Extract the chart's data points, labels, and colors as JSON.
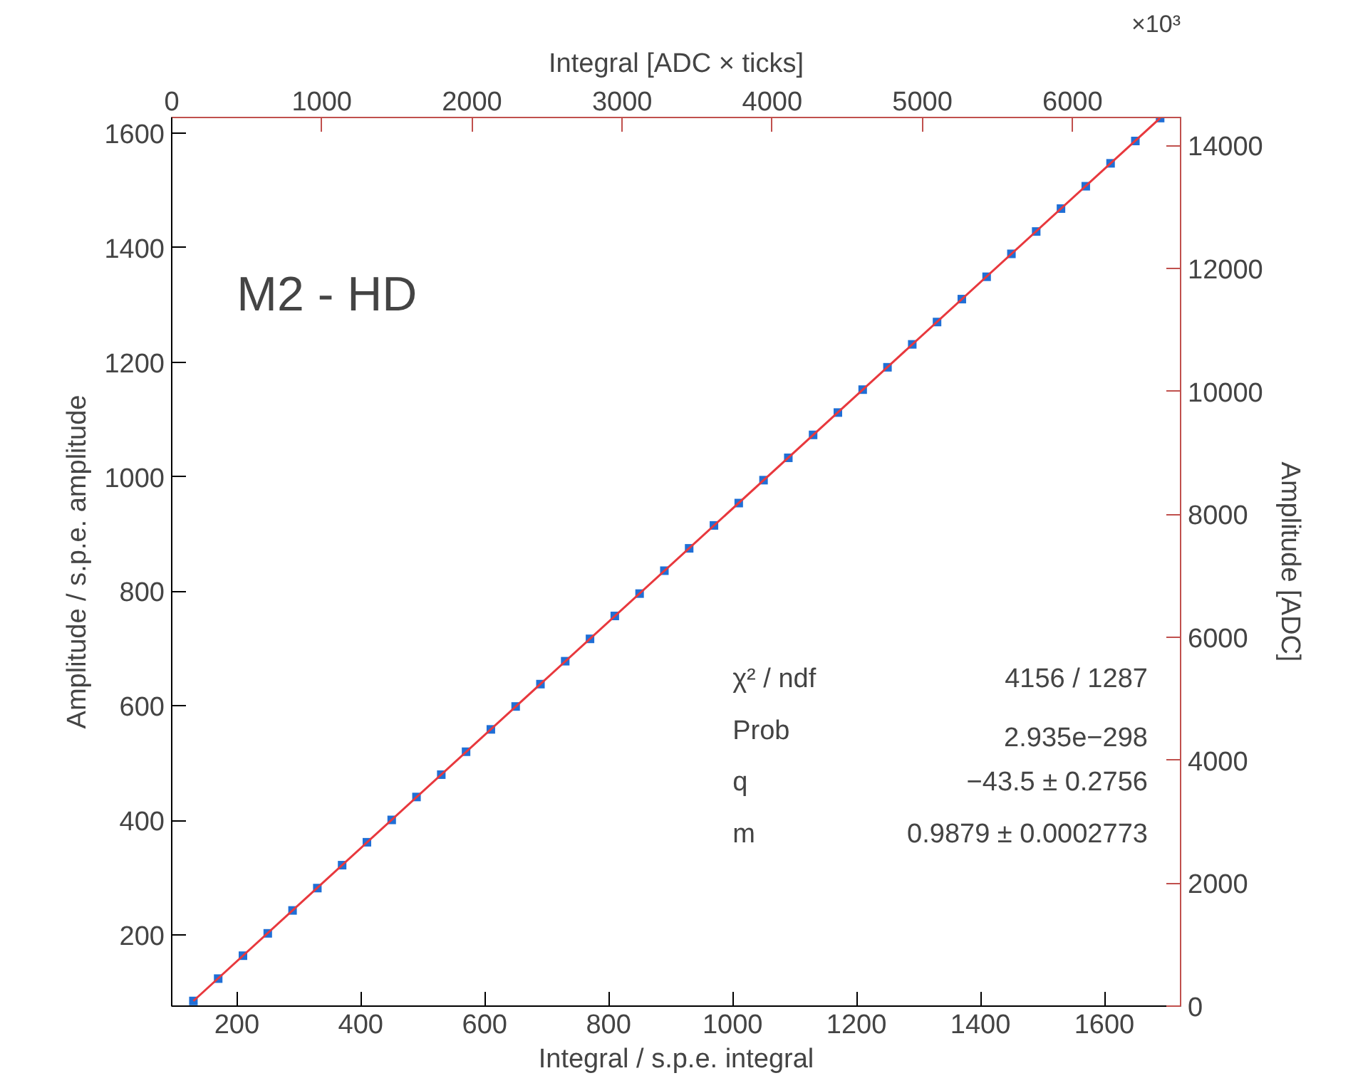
{
  "chart_data": {
    "type": "scatter",
    "xlabel": "Integral / s.p.e. integral",
    "ylabel": "Amplitude / s.p.e. amplitude",
    "x2label": "Integral [ADC × ticks]",
    "y2label": "Amplitude [ADC]",
    "xlim": [
      95,
      1723
    ],
    "ylim": [
      76,
      1627
    ],
    "x2lim": [
      0,
      6720
    ],
    "y2lim": [
      0,
      14453
    ],
    "xticks": [
      200,
      400,
      600,
      800,
      1000,
      1200,
      1400,
      1600
    ],
    "yticks": [
      200,
      400,
      600,
      800,
      1000,
      1200,
      1400,
      1600
    ],
    "x2ticks": [
      0,
      1000,
      2000,
      3000,
      4000,
      5000,
      6000
    ],
    "y2ticks": [
      0,
      2000,
      4000,
      6000,
      8000,
      10000,
      12000,
      14000
    ],
    "grid": false,
    "series": [
      {
        "color": "#1f6fd6",
        "marker": "square",
        "x": [
          130,
          170,
          210,
          250,
          290,
          330,
          370,
          410,
          450,
          490,
          530,
          570,
          610,
          650,
          690,
          730,
          770,
          810,
          850,
          890,
          930,
          970,
          1010,
          1050,
          1090,
          1130,
          1170,
          1210,
          1250,
          1290,
          1330,
          1370,
          1410,
          1450,
          1490,
          1530,
          1570,
          1610,
          1650,
          1690
        ],
        "values": [
          85,
          124,
          164,
          203,
          243,
          282,
          322,
          362,
          401,
          441,
          480,
          520,
          559,
          599,
          638,
          678,
          717,
          757,
          796,
          836,
          875,
          915,
          954,
          994,
          1033,
          1073,
          1112,
          1152,
          1191,
          1231,
          1270,
          1310,
          1349,
          1389,
          1428,
          1468,
          1507,
          1547,
          1586,
          1626
        ]
      },
      {
        "type": "line",
        "color": "#e8383d",
        "x": [
          130,
          1690
        ],
        "values": [
          85,
          1626
        ]
      }
    ],
    "annotations": [
      "M2 - HD",
      "χ² / ndf",
      "4156 / 1287",
      "Prob",
      "2.935e−298",
      "q",
      "−43.5 ± 0.2756",
      "m",
      "0.9879 ± 0.0002773",
      "×10³"
    ]
  }
}
